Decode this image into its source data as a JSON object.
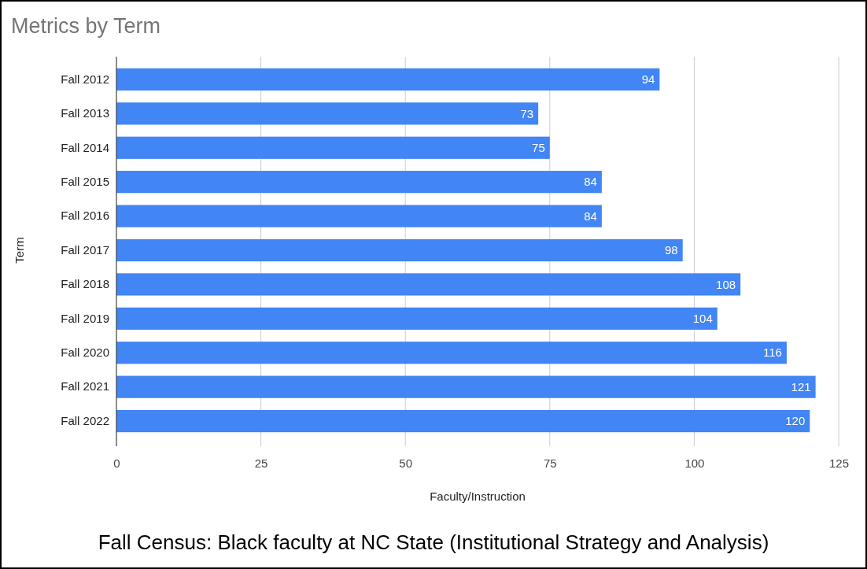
{
  "chart_data": {
    "type": "bar",
    "orientation": "horizontal",
    "title": "Metrics by Term",
    "xlabel": "Faculty/Instruction",
    "ylabel": "Term",
    "categories": [
      "Fall 2012",
      "Fall 2013",
      "Fall 2014",
      "Fall 2015",
      "Fall 2016",
      "Fall 2017",
      "Fall 2018",
      "Fall 2019",
      "Fall 2020",
      "Fall 2021",
      "Fall 2022"
    ],
    "values": [
      94,
      73,
      75,
      84,
      84,
      98,
      108,
      104,
      116,
      121,
      120
    ],
    "color": "#4285f4",
    "xlim": [
      0,
      125
    ],
    "xticks": [
      0,
      25,
      50,
      75,
      100,
      125
    ],
    "grid": "x",
    "data_labels": true,
    "annotations": [
      "Fall Census: Black faculty at NC State (Institutional Strategy and Analysis)"
    ]
  }
}
